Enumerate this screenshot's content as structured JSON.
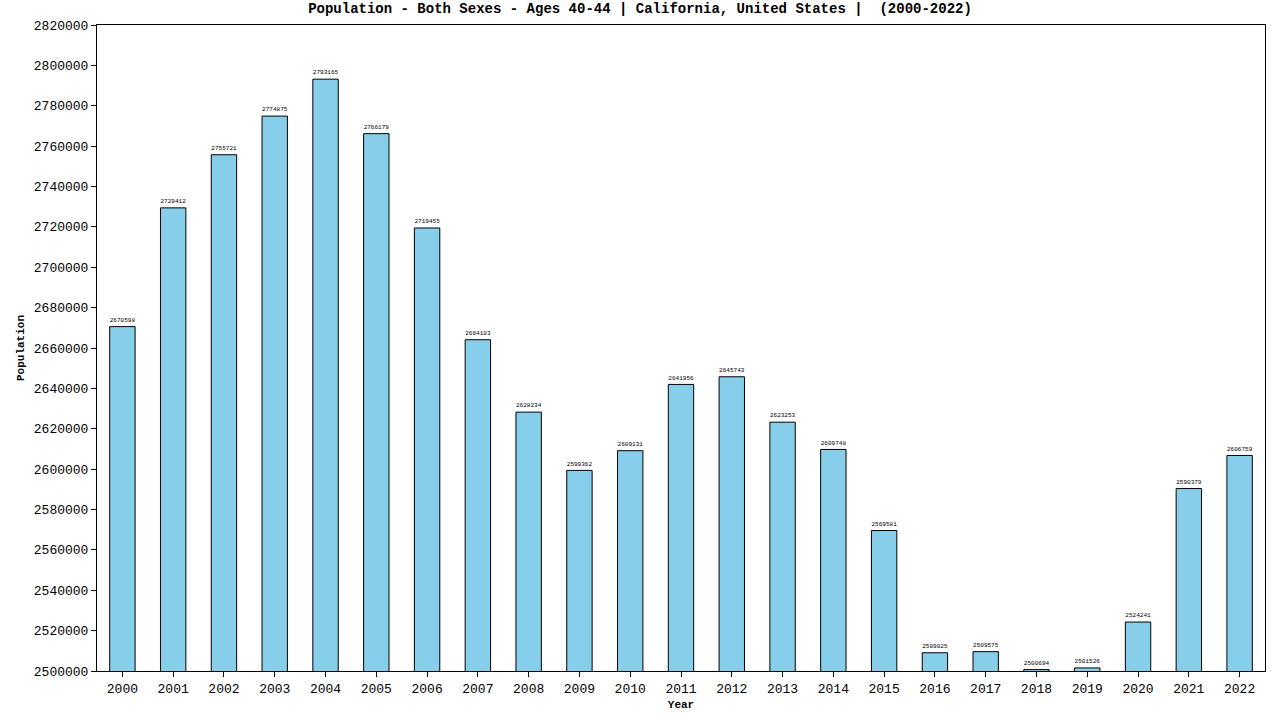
{
  "chart_data": {
    "type": "bar",
    "title": "Population - Both Sexes - Ages 40-44 | California, United States |  (2000-2022)",
    "x_label": "Year",
    "y_label": "Population",
    "categories": [
      "2000",
      "2001",
      "2002",
      "2003",
      "2004",
      "2005",
      "2006",
      "2007",
      "2008",
      "2009",
      "2010",
      "2011",
      "2012",
      "2013",
      "2014",
      "2015",
      "2016",
      "2017",
      "2018",
      "2019",
      "2020",
      "2021",
      "2022"
    ],
    "values": [
      2670598,
      2729412,
      2755721,
      2774875,
      2793165,
      2766179,
      2719455,
      2664103,
      2628234,
      2599362,
      2609131,
      2641956,
      2645743,
      2623253,
      2609748,
      2569581,
      2509025,
      2509575,
      2500694,
      2501526,
      2524241,
      2590379,
      2606759
    ],
    "color": "#87ceeb",
    "ylim": [
      2500000,
      2820000
    ],
    "yticks": [
      2500000,
      2520000,
      2540000,
      2560000,
      2580000,
      2600000,
      2620000,
      2640000,
      2660000,
      2680000,
      2700000,
      2720000,
      2740000,
      2760000,
      2780000,
      2800000,
      2820000
    ],
    "grid": false,
    "data_labels": true
  }
}
